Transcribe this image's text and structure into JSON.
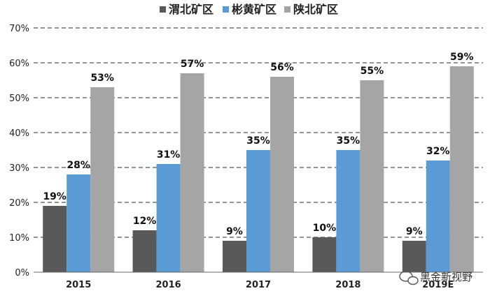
{
  "chart_data": {
    "type": "bar",
    "categories": [
      "2015",
      "2016",
      "2017",
      "2018",
      "2019E"
    ],
    "series": [
      {
        "name": "渭北矿区",
        "values": [
          19,
          12,
          9,
          10,
          9
        ],
        "labels": [
          "19%",
          "12%",
          "9%",
          "10%",
          "9%"
        ],
        "color": "#595959"
      },
      {
        "name": "彬黄矿区",
        "values": [
          28,
          31,
          35,
          35,
          32
        ],
        "labels": [
          "28%",
          "31%",
          "35%",
          "35%",
          "32%"
        ],
        "color": "#5B9BD5"
      },
      {
        "name": "陕北矿区",
        "values": [
          53,
          57,
          56,
          55,
          59
        ],
        "labels": [
          "53%",
          "57%",
          "56%",
          "55%",
          "59%"
        ],
        "color": "#A5A5A5"
      }
    ],
    "ylim": [
      0,
      70
    ],
    "yticks": [
      0,
      10,
      20,
      30,
      40,
      50,
      60,
      70
    ],
    "ytick_labels": [
      "0%",
      "10%",
      "20%",
      "30%",
      "40%",
      "50%",
      "60%",
      "70%"
    ],
    "grid": true,
    "legend": "top-center"
  },
  "watermark": {
    "text": "黑金新视野",
    "icon": "wechat-icon"
  }
}
